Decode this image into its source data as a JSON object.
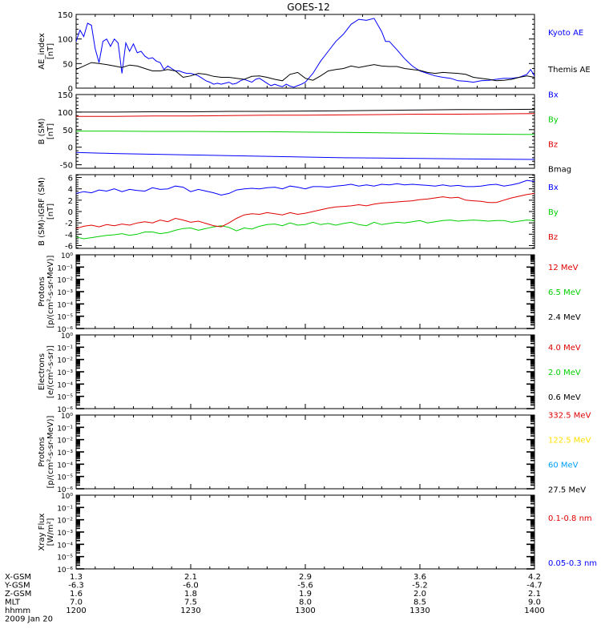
{
  "title": "GOES-12",
  "colors": {
    "black": "#000000",
    "blue": "#0000ff",
    "red": "#e00000",
    "green": "#00d000",
    "yellow": "#ffe000",
    "cyan": "#00a0ff"
  },
  "chart_data": [
    {
      "type": "line",
      "ylabel_lines": [
        "AE_index",
        "[nT]"
      ],
      "ylim": [
        0,
        150
      ],
      "yticks": [
        0,
        50,
        100,
        150
      ],
      "series": [
        {
          "name": "Kyoto AE",
          "color": "blue",
          "x": [
            1200,
            1201,
            1202,
            1203,
            1204,
            1205,
            1206,
            1207,
            1208,
            1209,
            1210,
            1211,
            1212,
            1213,
            1214,
            1215,
            1216,
            1217,
            1218,
            1219,
            1220,
            1221,
            1222,
            1223,
            1224,
            1225,
            1226,
            1227,
            1228,
            1229,
            1230,
            1231,
            1232,
            1233,
            1234,
            1235,
            1236,
            1237,
            1238,
            1239,
            1240,
            1241,
            1242,
            1243,
            1244,
            1245,
            1246,
            1247,
            1248,
            1249,
            1250,
            1251,
            1252,
            1253,
            1254,
            1255,
            1256,
            1257,
            1258,
            1259,
            1300,
            1302,
            1304,
            1306,
            1308,
            1310,
            1312,
            1314,
            1316,
            1318,
            1320,
            1321,
            1322,
            1324,
            1326,
            1328,
            1330,
            1332,
            1334,
            1336,
            1338,
            1340,
            1342,
            1344,
            1346,
            1348,
            1350,
            1352,
            1354,
            1356,
            1358,
            1359,
            1400
          ],
          "y": [
            95,
            118,
            105,
            132,
            128,
            80,
            52,
            95,
            100,
            85,
            100,
            92,
            30,
            92,
            75,
            90,
            72,
            75,
            65,
            60,
            62,
            55,
            52,
            38,
            45,
            40,
            35,
            35,
            32,
            30,
            30,
            28,
            25,
            20,
            15,
            12,
            8,
            10,
            8,
            10,
            12,
            8,
            10,
            15,
            18,
            15,
            12,
            18,
            20,
            15,
            10,
            5,
            8,
            5,
            3,
            8,
            4,
            2,
            5,
            8,
            12,
            30,
            55,
            75,
            95,
            110,
            130,
            140,
            138,
            142,
            115,
            95,
            95,
            78,
            60,
            45,
            35,
            30,
            25,
            22,
            20,
            15,
            14,
            12,
            15,
            16,
            18,
            20,
            20,
            22,
            28,
            38,
            25
          ]
        },
        {
          "name": "Themis AE",
          "color": "black",
          "x": [
            1200,
            1202,
            1204,
            1206,
            1208,
            1210,
            1212,
            1214,
            1216,
            1218,
            1220,
            1222,
            1224,
            1226,
            1228,
            1230,
            1232,
            1234,
            1236,
            1238,
            1240,
            1242,
            1244,
            1246,
            1248,
            1250,
            1252,
            1254,
            1256,
            1258,
            1300,
            1302,
            1304,
            1306,
            1308,
            1310,
            1312,
            1314,
            1316,
            1318,
            1320,
            1322,
            1324,
            1326,
            1328,
            1330,
            1332,
            1334,
            1336,
            1338,
            1340,
            1342,
            1344,
            1346,
            1348,
            1350,
            1352,
            1354,
            1356,
            1358,
            1400
          ],
          "y": [
            38,
            45,
            52,
            50,
            48,
            45,
            42,
            47,
            45,
            40,
            35,
            35,
            38,
            35,
            22,
            25,
            30,
            28,
            24,
            22,
            22,
            20,
            18,
            24,
            25,
            22,
            18,
            15,
            28,
            32,
            20,
            16,
            25,
            35,
            38,
            40,
            45,
            42,
            45,
            48,
            45,
            44,
            44,
            40,
            38,
            36,
            32,
            30,
            32,
            31,
            30,
            28,
            22,
            20,
            18,
            15,
            16,
            18,
            22,
            25,
            22
          ]
        }
      ]
    },
    {
      "type": "line",
      "ylabel_lines": [
        "B (SM)",
        "[nT]"
      ],
      "ylim": [
        -60,
        150
      ],
      "yticks": [
        -50,
        0,
        50,
        100,
        150
      ],
      "series": [
        {
          "name": "Bx",
          "color": "blue",
          "x": [
            1200,
            1210,
            1220,
            1230,
            1240,
            1250,
            1300,
            1310,
            1320,
            1330,
            1340,
            1350,
            1400
          ],
          "y": [
            -15,
            -18,
            -20,
            -22,
            -24,
            -26,
            -28,
            -30,
            -31,
            -32,
            -33,
            -34,
            -35
          ]
        },
        {
          "name": "By",
          "color": "green",
          "x": [
            1200,
            1210,
            1220,
            1230,
            1240,
            1250,
            1300,
            1310,
            1320,
            1330,
            1340,
            1350,
            1400
          ],
          "y": [
            46,
            46,
            45,
            45,
            44,
            44,
            43,
            42,
            41,
            40,
            38,
            37,
            36
          ]
        },
        {
          "name": "Bz",
          "color": "red",
          "x": [
            1200,
            1210,
            1220,
            1230,
            1240,
            1250,
            1300,
            1310,
            1320,
            1330,
            1340,
            1350,
            1400
          ],
          "y": [
            88,
            88,
            89,
            89,
            90,
            91,
            91,
            92,
            93,
            94,
            94,
            95,
            96
          ]
        },
        {
          "name": "Bmag",
          "color": "black",
          "x": [
            1200,
            1210,
            1220,
            1230,
            1240,
            1250,
            1300,
            1310,
            1320,
            1330,
            1340,
            1350,
            1400
          ],
          "y": [
            100,
            100,
            101,
            101,
            102,
            102,
            103,
            104,
            105,
            106,
            107,
            107,
            108
          ]
        }
      ]
    },
    {
      "type": "line",
      "ylabel_lines": [
        "B (SM)-IGRF (SM)",
        "[nT]"
      ],
      "ylim": [
        -6.5,
        6.5
      ],
      "yticks": [
        -6,
        -4,
        -2,
        0,
        2,
        4,
        6
      ],
      "series": [
        {
          "name": "Bx",
          "color": "blue",
          "x": [
            1200,
            1202,
            1204,
            1206,
            1208,
            1210,
            1212,
            1214,
            1216,
            1218,
            1220,
            1222,
            1224,
            1226,
            1228,
            1230,
            1232,
            1234,
            1236,
            1238,
            1240,
            1242,
            1244,
            1246,
            1248,
            1250,
            1252,
            1254,
            1256,
            1258,
            1300,
            1302,
            1304,
            1306,
            1308,
            1310,
            1312,
            1314,
            1316,
            1318,
            1320,
            1322,
            1324,
            1326,
            1328,
            1330,
            1332,
            1334,
            1336,
            1338,
            1340,
            1342,
            1344,
            1346,
            1348,
            1350,
            1352,
            1354,
            1356,
            1358,
            1400
          ],
          "y": [
            3.2,
            3.5,
            3.3,
            3.8,
            3.6,
            4.0,
            3.5,
            3.9,
            3.7,
            3.6,
            4.2,
            3.9,
            4.0,
            4.5,
            4.3,
            3.5,
            3.9,
            3.6,
            3.3,
            2.9,
            3.2,
            3.8,
            4.0,
            4.1,
            4.0,
            4.2,
            4.3,
            4.0,
            4.5,
            4.3,
            4.0,
            4.4,
            4.4,
            4.3,
            4.5,
            4.6,
            4.8,
            4.5,
            4.7,
            4.5,
            4.8,
            4.7,
            4.9,
            4.7,
            4.8,
            4.7,
            4.6,
            4.5,
            4.7,
            4.5,
            4.6,
            4.4,
            4.4,
            4.5,
            4.7,
            4.8,
            4.5,
            4.7,
            5.0,
            5.5,
            5.3
          ]
        },
        {
          "name": "By",
          "color": "green",
          "x": [
            1200,
            1202,
            1204,
            1206,
            1208,
            1210,
            1212,
            1214,
            1216,
            1218,
            1220,
            1222,
            1224,
            1226,
            1228,
            1230,
            1232,
            1234,
            1236,
            1238,
            1240,
            1242,
            1244,
            1246,
            1248,
            1250,
            1252,
            1254,
            1256,
            1258,
            1300,
            1302,
            1304,
            1306,
            1308,
            1310,
            1312,
            1314,
            1316,
            1318,
            1320,
            1322,
            1324,
            1326,
            1328,
            1330,
            1332,
            1334,
            1336,
            1338,
            1340,
            1342,
            1344,
            1346,
            1348,
            1350,
            1352,
            1354,
            1356,
            1358,
            1400
          ],
          "y": [
            -4.5,
            -4.8,
            -4.6,
            -4.4,
            -4.2,
            -4.1,
            -3.9,
            -4.2,
            -4.0,
            -3.6,
            -3.6,
            -3.9,
            -3.7,
            -3.3,
            -3.0,
            -2.9,
            -3.3,
            -3.0,
            -2.7,
            -2.5,
            -2.8,
            -3.4,
            -2.9,
            -3.1,
            -2.6,
            -2.3,
            -2.2,
            -2.5,
            -2.0,
            -2.4,
            -2.3,
            -1.9,
            -2.3,
            -2.1,
            -2.4,
            -2.1,
            -1.9,
            -2.3,
            -2.5,
            -1.9,
            -2.3,
            -2.1,
            -1.9,
            -2.0,
            -1.8,
            -1.6,
            -2.0,
            -1.8,
            -1.6,
            -1.5,
            -1.7,
            -1.6,
            -1.5,
            -1.6,
            -1.7,
            -1.6,
            -1.6,
            -1.9,
            -1.7,
            -1.5,
            -1.6
          ]
        },
        {
          "name": "Bz",
          "color": "red",
          "x": [
            1200,
            1202,
            1204,
            1206,
            1208,
            1210,
            1212,
            1214,
            1216,
            1218,
            1220,
            1222,
            1224,
            1226,
            1228,
            1230,
            1232,
            1234,
            1236,
            1238,
            1240,
            1242,
            1244,
            1246,
            1248,
            1250,
            1252,
            1254,
            1256,
            1258,
            1300,
            1302,
            1304,
            1306,
            1308,
            1310,
            1312,
            1314,
            1316,
            1318,
            1320,
            1322,
            1324,
            1326,
            1328,
            1330,
            1332,
            1334,
            1336,
            1338,
            1340,
            1342,
            1344,
            1346,
            1348,
            1350,
            1352,
            1354,
            1356,
            1358,
            1400
          ],
          "y": [
            -3.0,
            -2.6,
            -2.4,
            -2.7,
            -2.3,
            -2.5,
            -2.2,
            -2.4,
            -2.0,
            -1.8,
            -2.0,
            -1.5,
            -1.8,
            -1.2,
            -1.5,
            -1.9,
            -1.7,
            -2.1,
            -2.5,
            -2.7,
            -2.0,
            -1.2,
            -0.6,
            -0.4,
            -0.5,
            -0.2,
            -0.4,
            -0.6,
            -0.2,
            -0.5,
            -0.3,
            0.0,
            0.3,
            0.6,
            0.8,
            0.9,
            1.0,
            1.2,
            1.0,
            1.3,
            1.5,
            1.6,
            1.7,
            1.8,
            1.9,
            2.1,
            2.2,
            2.4,
            2.6,
            2.4,
            2.5,
            2.0,
            1.9,
            1.8,
            1.6,
            1.6,
            2.0,
            2.4,
            2.7,
            3.0,
            3.2
          ]
        }
      ]
    },
    {
      "type": "line",
      "ylabel_lines": [
        "Protons",
        "[p/(cm²-s-sr-MeV)]"
      ],
      "log": true,
      "ylim": [
        -6,
        0
      ],
      "ytick_labels": [
        "10⁰",
        "10⁻¹",
        "10⁻²",
        "10⁻³",
        "10⁻⁴",
        "10⁻⁵",
        "10⁻⁶"
      ],
      "series": [
        {
          "name": "12 MeV",
          "color": "red",
          "x": [],
          "y": []
        },
        {
          "name": "6.5 MeV",
          "color": "green",
          "x": [],
          "y": []
        },
        {
          "name": "2.4 MeV",
          "color": "black",
          "x": [],
          "y": []
        }
      ]
    },
    {
      "type": "line",
      "ylabel_lines": [
        "Electrons",
        "[e/(cm²-s-sr)]"
      ],
      "log": true,
      "ylim": [
        -6,
        0
      ],
      "ytick_labels": [
        "10⁰",
        "10⁻¹",
        "10⁻²",
        "10⁻³",
        "10⁻⁴",
        "10⁻⁵",
        "10⁻⁶"
      ],
      "series": [
        {
          "name": "4.0 MeV",
          "color": "red",
          "x": [],
          "y": []
        },
        {
          "name": "2.0 MeV",
          "color": "green",
          "x": [],
          "y": []
        },
        {
          "name": "0.6 MeV",
          "color": "black",
          "x": [],
          "y": []
        }
      ]
    },
    {
      "type": "line",
      "ylabel_lines": [
        "Protons",
        "[p/(cm²-s-sr-MeV)]"
      ],
      "log": true,
      "ylim": [
        -6,
        0
      ],
      "ytick_labels": [
        "10⁰",
        "10⁻¹",
        "10⁻²",
        "10⁻³",
        "10⁻⁴",
        "10⁻⁵",
        "10⁻⁶"
      ],
      "series": [
        {
          "name": "332.5 MeV",
          "color": "red",
          "x": [],
          "y": []
        },
        {
          "name": "122.5 MeV",
          "color": "yellow",
          "x": [],
          "y": []
        },
        {
          "name": "60 MeV",
          "color": "cyan",
          "x": [],
          "y": []
        },
        {
          "name": "27.5 MeV",
          "color": "black",
          "x": [],
          "y": []
        }
      ]
    },
    {
      "type": "line",
      "ylabel_lines": [
        "Xray Flux",
        "[W/m²]"
      ],
      "log": true,
      "ylim": [
        -6,
        0
      ],
      "ytick_labels": [
        "10⁰",
        "10⁻¹",
        "10⁻²",
        "10⁻³",
        "10⁻⁴",
        "10⁻⁵",
        "10⁻⁶"
      ],
      "series": [
        {
          "name": "0.1-0.8 nm",
          "color": "red",
          "x": [],
          "y": []
        },
        {
          "name": "0.05-0.3 nm",
          "color": "blue",
          "x": [],
          "y": []
        }
      ]
    }
  ],
  "xaxis": {
    "xlim": [
      1200,
      1400
    ],
    "ticks": [
      1200,
      1230,
      1300,
      1330,
      1400
    ],
    "rows": [
      {
        "label": "X-GSM",
        "values": [
          "1.3",
          "2.1",
          "2.9",
          "3.6",
          "4.2"
        ]
      },
      {
        "label": "Y-GSM",
        "values": [
          "-6.3",
          "-6.0",
          "-5.6",
          "-5.2",
          "-4.7"
        ]
      },
      {
        "label": "Z-GSM",
        "values": [
          "1.6",
          "1.8",
          "1.9",
          "2.0",
          "2.1"
        ]
      },
      {
        "label": "MLT",
        "values": [
          "7.0",
          "7.5",
          "8.0",
          "8.5",
          "9.0"
        ]
      },
      {
        "label": "hhmm",
        "values": [
          "1200",
          "1230",
          "1300",
          "1330",
          "1400"
        ]
      }
    ],
    "date": "2009 Jan 20"
  }
}
